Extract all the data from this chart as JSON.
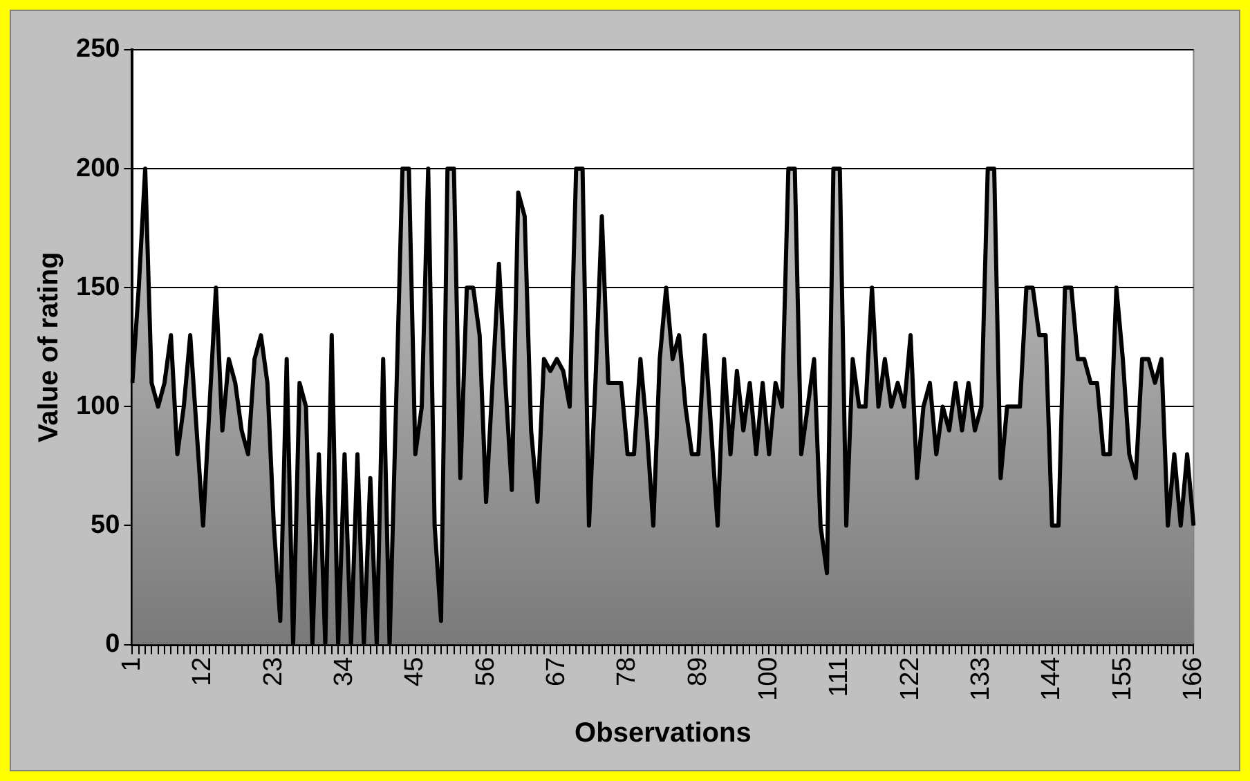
{
  "chart_data": {
    "type": "area",
    "xlabel": "Observations",
    "ylabel": "Value of rating",
    "categories": [
      "1",
      null,
      null,
      null,
      null,
      null,
      null,
      null,
      null,
      null,
      null,
      "12",
      null,
      null,
      null,
      null,
      null,
      null,
      null,
      null,
      null,
      null,
      "23",
      null,
      null,
      null,
      null,
      null,
      null,
      null,
      null,
      null,
      null,
      "34",
      null,
      null,
      null,
      null,
      null,
      null,
      null,
      null,
      null,
      null,
      "45",
      null,
      null,
      null,
      null,
      null,
      null,
      null,
      null,
      null,
      null,
      "56",
      null,
      null,
      null,
      null,
      null,
      null,
      null,
      null,
      null,
      null,
      "67",
      null,
      null,
      null,
      null,
      null,
      null,
      null,
      null,
      null,
      null,
      "78",
      null,
      null,
      null,
      null,
      null,
      null,
      null,
      null,
      null,
      null,
      "89",
      null,
      null,
      null,
      null,
      null,
      null,
      null,
      null,
      null,
      null,
      "100",
      null,
      null,
      null,
      null,
      null,
      null,
      null,
      null,
      null,
      null,
      "111",
      null,
      null,
      null,
      null,
      null,
      null,
      null,
      null,
      null,
      null,
      "122",
      null,
      null,
      null,
      null,
      null,
      null,
      null,
      null,
      null,
      null,
      "133",
      null,
      null,
      null,
      null,
      null,
      null,
      null,
      null,
      null,
      null,
      "144",
      null,
      null,
      null,
      null,
      null,
      null,
      null,
      null,
      null,
      null,
      "155",
      null,
      null,
      null,
      null,
      null,
      null,
      null,
      null,
      null,
      null,
      "166"
    ],
    "series": [
      {
        "color": "#000000",
        "values": [
          110,
          150,
          200,
          110,
          100,
          110,
          130,
          80,
          100,
          130,
          90,
          50,
          100,
          150,
          90,
          120,
          110,
          90,
          80,
          120,
          130,
          110,
          50,
          10,
          120,
          0,
          110,
          100,
          0,
          80,
          0,
          130,
          0,
          80,
          0,
          80,
          0,
          70,
          0,
          120,
          0,
          100,
          200,
          200,
          80,
          100,
          200,
          50,
          10,
          200,
          200,
          70,
          150,
          150,
          130,
          60,
          110,
          160,
          110,
          65,
          190,
          180,
          90,
          60,
          120,
          115,
          120,
          115,
          100,
          200,
          200,
          50,
          110,
          180,
          110,
          110,
          110,
          80,
          80,
          120,
          90,
          50,
          120,
          150,
          120,
          130,
          100,
          80,
          80,
          130,
          90,
          50,
          120,
          80,
          115,
          90,
          110,
          80,
          110,
          80,
          110,
          100,
          200,
          200,
          80,
          100,
          120,
          50,
          30,
          200,
          200,
          50,
          120,
          100,
          100,
          150,
          100,
          120,
          100,
          110,
          100,
          130,
          70,
          100,
          110,
          80,
          100,
          90,
          110,
          90,
          110,
          90,
          100,
          200,
          200,
          70,
          100,
          100,
          100,
          150,
          150,
          130,
          130,
          50,
          50,
          150,
          150,
          120,
          120,
          110,
          110,
          80,
          80,
          150,
          120,
          80,
          70,
          120,
          120,
          110,
          120,
          50,
          80,
          50,
          80,
          50
        ]
      }
    ],
    "ylim": [
      0,
      250
    ],
    "yticks": [
      0,
      50,
      100,
      150,
      200,
      250
    ],
    "grid": "y",
    "legend": false,
    "marker": "none",
    "line_style": "solid"
  }
}
